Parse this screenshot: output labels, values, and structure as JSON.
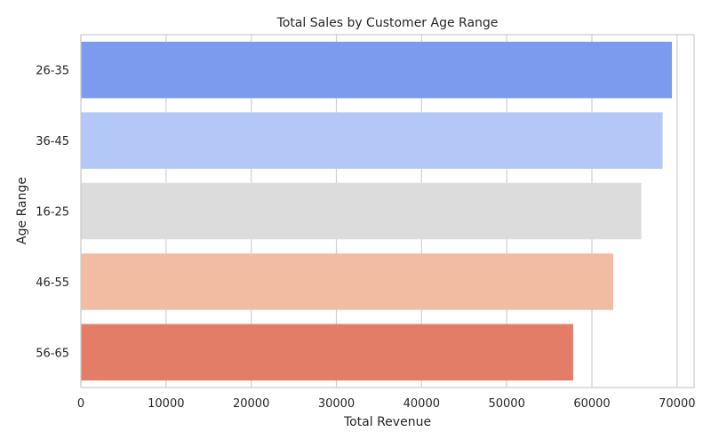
{
  "chart_data": {
    "type": "bar",
    "orientation": "horizontal",
    "title": "Total Sales by Customer Age Range",
    "xlabel": "Total Revenue",
    "ylabel": "Age Range",
    "categories": [
      "26-35",
      "36-45",
      "16-25",
      "46-55",
      "56-65"
    ],
    "values": [
      69400,
      68300,
      65800,
      62500,
      57800
    ],
    "colors": [
      "#7b9cee",
      "#b3c8f6",
      "#dcdcdc",
      "#f2bca3",
      "#e47d68"
    ],
    "xlim": [
      0,
      72000
    ],
    "xticks": [
      0,
      10000,
      20000,
      30000,
      40000,
      50000,
      60000,
      70000
    ],
    "grid": "vertical"
  }
}
